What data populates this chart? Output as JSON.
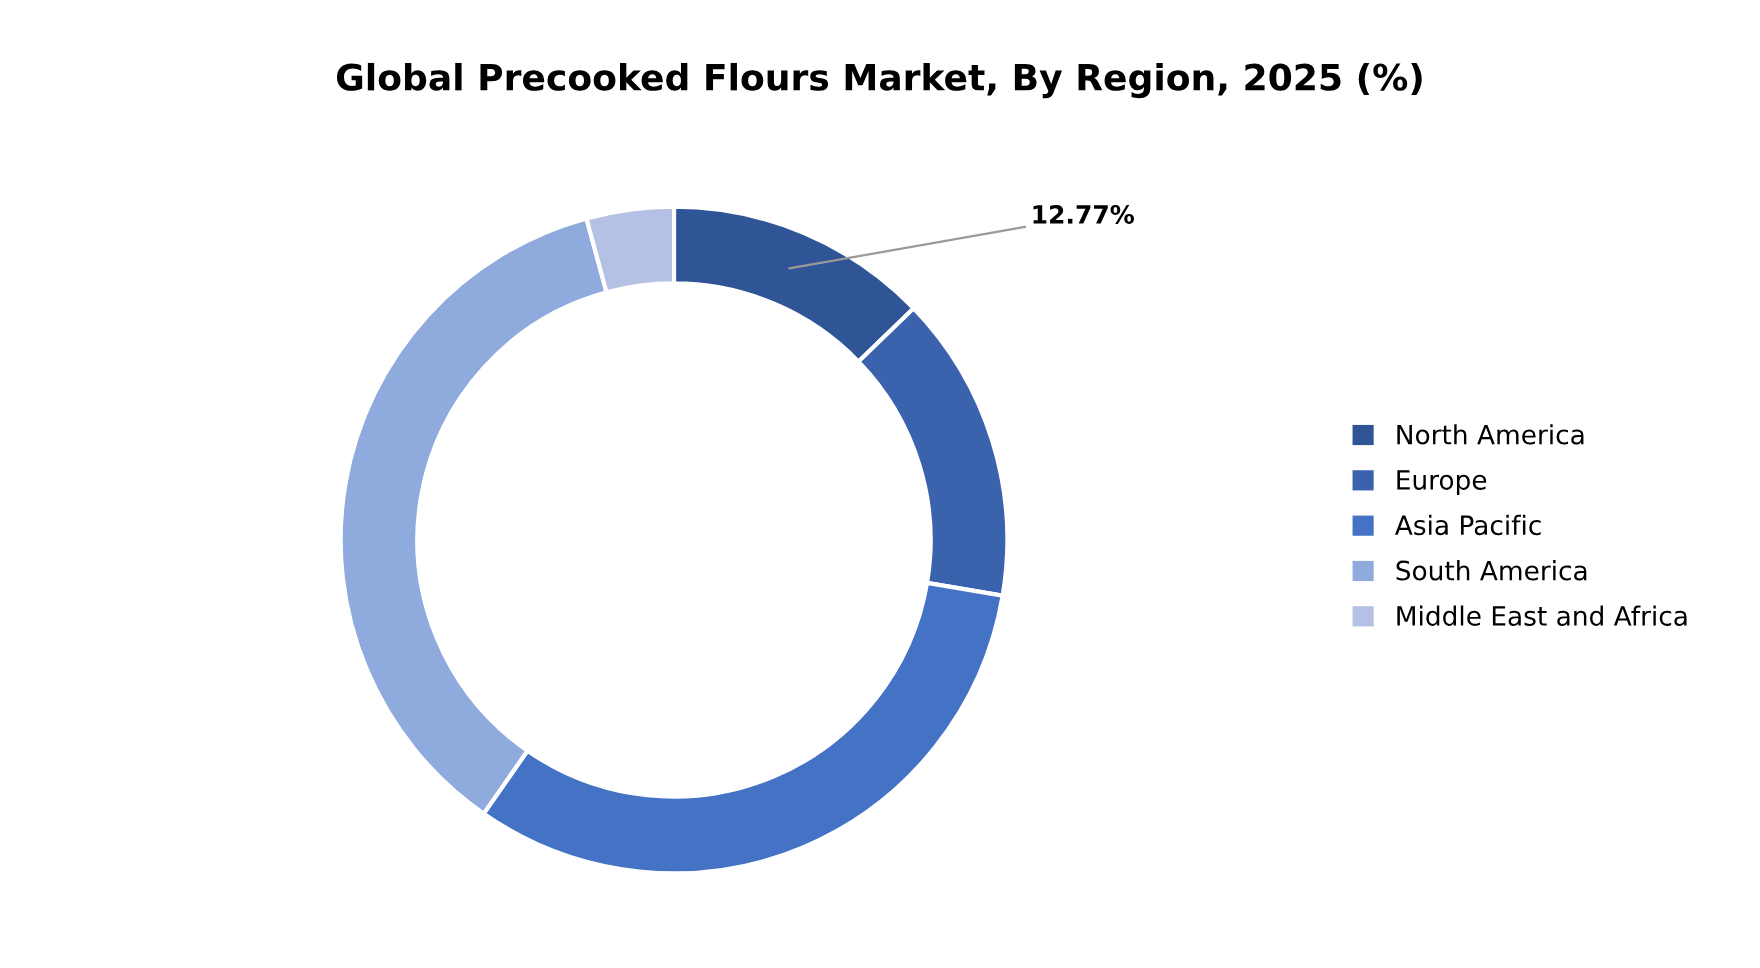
{
  "chart_data": {
    "type": "donut",
    "title": "Global Precooked Flours Market, By Region, 2025 (%)",
    "categories": [
      "North America",
      "Europe",
      "Asia Pacific",
      "South America",
      "Middle East and Africa"
    ],
    "values": [
      12.77,
      14.9,
      32.0,
      36.1,
      4.23
    ],
    "colors": [
      "#2f5597",
      "#3a62ad",
      "#4472c4",
      "#8faadc",
      "#b4c0e4"
    ],
    "value_labels": [
      "12.77%",
      null,
      null,
      null,
      null
    ],
    "legend": "right"
  }
}
